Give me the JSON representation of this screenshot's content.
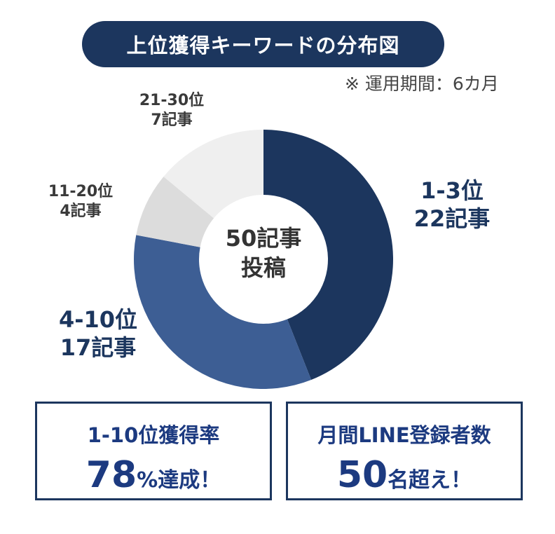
{
  "header": {
    "title": "上位獲得キーワードの分布図",
    "note": "※ 運用期間：6カ月"
  },
  "chart_data": {
    "type": "pie",
    "title": "上位獲得キーワードの分布図",
    "center_label": [
      "50記事",
      "投稿"
    ],
    "total": 50,
    "slices": [
      {
        "name": "1-3位",
        "label": "22記事",
        "value": 22,
        "color": "#1c365e"
      },
      {
        "name": "4-10位",
        "label": "17記事",
        "value": 17,
        "color": "#3d5e94"
      },
      {
        "name": "11-20位",
        "label": "4記事",
        "value": 4,
        "color": "#dcdcdc"
      },
      {
        "name": "21-30位",
        "label": "7記事",
        "value": 7,
        "color": "#efefef"
      }
    ]
  },
  "stats": [
    {
      "heading": "1-10位獲得率",
      "number": "78",
      "suffix": "%達成！"
    },
    {
      "heading": "月間LINE登録者数",
      "number": "50",
      "suffix": "名超え！"
    }
  ]
}
